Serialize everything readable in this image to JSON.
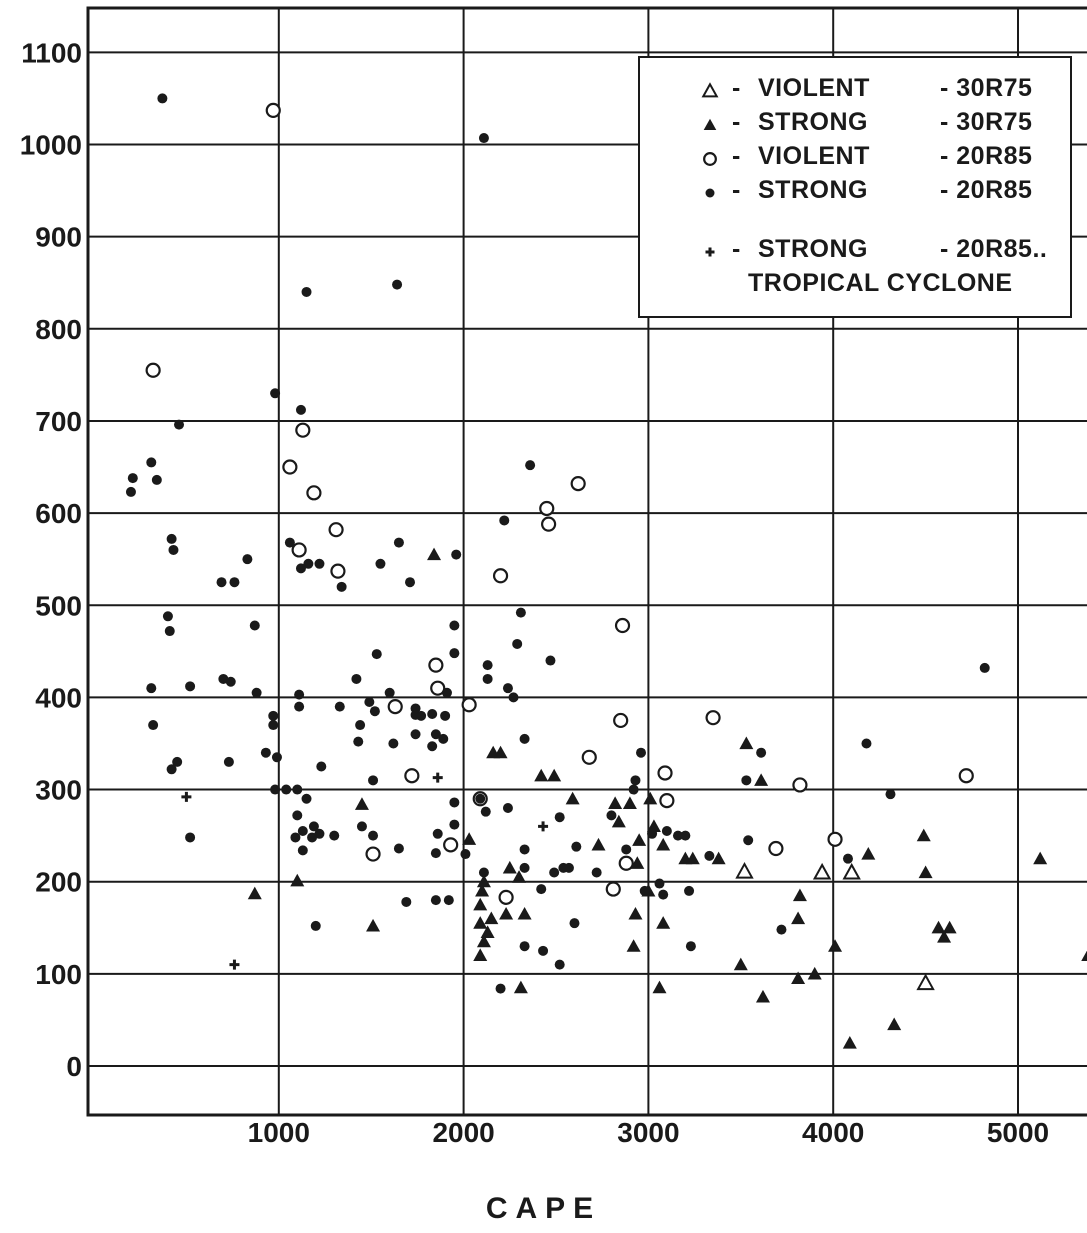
{
  "chart_data": {
    "type": "scatter",
    "xlabel": "CAPE",
    "ylabel": "",
    "xlim": [
      0,
      5500
    ],
    "ylim": [
      -50,
      1150
    ],
    "x_ticks": [
      1000,
      2000,
      3000,
      4000,
      5000
    ],
    "x_tick_labels": [
      "1000",
      "2000",
      "3000",
      "4000",
      "5000"
    ],
    "y_ticks": [
      0,
      100,
      200,
      300,
      400,
      500,
      600,
      700,
      800,
      900,
      1000,
      1100
    ],
    "y_tick_labels": [
      "0",
      "100",
      "200",
      "300",
      "400",
      "500",
      "600",
      "700",
      "800",
      "900",
      "1000",
      "1100"
    ],
    "grid": true,
    "legend_position": "top-right",
    "series": [
      {
        "key": "violent_30r75",
        "marker": "open-triangle",
        "legend": {
          "symbol": "△",
          "label": "VIOLENT",
          "code": "30R75"
        },
        "points": [
          [
            3520,
            211
          ],
          [
            3940,
            210
          ],
          [
            4100,
            210
          ],
          [
            4500,
            90
          ]
        ]
      },
      {
        "key": "strong_30r75",
        "marker": "filled-triangle",
        "legend": {
          "symbol": "▲",
          "label": "STRONG",
          "code": "30R75"
        },
        "points": [
          [
            870,
            187
          ],
          [
            1100,
            201
          ],
          [
            1450,
            284
          ],
          [
            1510,
            152
          ],
          [
            1840,
            555
          ],
          [
            2030,
            246
          ],
          [
            2090,
            120
          ],
          [
            2090,
            175
          ],
          [
            2090,
            155
          ],
          [
            2100,
            190
          ],
          [
            2110,
            200
          ],
          [
            2110,
            135
          ],
          [
            2130,
            145
          ],
          [
            2150,
            160
          ],
          [
            2160,
            340
          ],
          [
            2200,
            340
          ],
          [
            2230,
            165
          ],
          [
            2250,
            215
          ],
          [
            2300,
            205
          ],
          [
            2310,
            85
          ],
          [
            2330,
            165
          ],
          [
            2420,
            315
          ],
          [
            2490,
            315
          ],
          [
            2590,
            290
          ],
          [
            2730,
            240
          ],
          [
            2820,
            285
          ],
          [
            2840,
            265
          ],
          [
            2900,
            285
          ],
          [
            2920,
            130
          ],
          [
            2930,
            165
          ],
          [
            2940,
            220
          ],
          [
            2950,
            245
          ],
          [
            3000,
            190
          ],
          [
            3010,
            290
          ],
          [
            3030,
            260
          ],
          [
            3060,
            85
          ],
          [
            3080,
            155
          ],
          [
            3080,
            240
          ],
          [
            3200,
            225
          ],
          [
            3240,
            225
          ],
          [
            3380,
            225
          ],
          [
            3500,
            110
          ],
          [
            3530,
            350
          ],
          [
            3610,
            310
          ],
          [
            3620,
            75
          ],
          [
            3810,
            160
          ],
          [
            3810,
            95
          ],
          [
            3820,
            185
          ],
          [
            3900,
            100
          ],
          [
            4010,
            130
          ],
          [
            4090,
            25
          ],
          [
            4190,
            230
          ],
          [
            4330,
            45
          ],
          [
            4490,
            250
          ],
          [
            4500,
            210
          ],
          [
            4570,
            150
          ],
          [
            4600,
            140
          ],
          [
            4630,
            150
          ],
          [
            5120,
            225
          ],
          [
            5380,
            120
          ]
        ]
      },
      {
        "key": "violent_20r85",
        "marker": "open-circle",
        "legend": {
          "symbol": "○",
          "label": "VIOLENT",
          "code": "20R85"
        },
        "points": [
          [
            320,
            755
          ],
          [
            970,
            1037
          ],
          [
            1060,
            650
          ],
          [
            1110,
            560
          ],
          [
            1130,
            690
          ],
          [
            1190,
            622
          ],
          [
            1310,
            582
          ],
          [
            1320,
            537
          ],
          [
            1510,
            230
          ],
          [
            1630,
            390
          ],
          [
            1720,
            315
          ],
          [
            1850,
            435
          ],
          [
            1860,
            410
          ],
          [
            1930,
            240
          ],
          [
            2030,
            392
          ],
          [
            2090,
            290
          ],
          [
            2200,
            532
          ],
          [
            2230,
            183
          ],
          [
            2450,
            605
          ],
          [
            2460,
            588
          ],
          [
            2620,
            632
          ],
          [
            2680,
            335
          ],
          [
            2810,
            192
          ],
          [
            2850,
            375
          ],
          [
            2860,
            478
          ],
          [
            2880,
            220
          ],
          [
            3090,
            318
          ],
          [
            3100,
            288
          ],
          [
            3350,
            378
          ],
          [
            3690,
            236
          ],
          [
            3820,
            305
          ],
          [
            4010,
            246
          ],
          [
            4720,
            315
          ]
        ]
      },
      {
        "key": "strong_20r85",
        "marker": "filled-circle",
        "legend": {
          "symbol": "●",
          "label": "STRONG",
          "code": "20R85"
        },
        "points": [
          [
            370,
            1050
          ],
          [
            2110,
            1007
          ],
          [
            980,
            730
          ],
          [
            1120,
            712
          ],
          [
            1150,
            840
          ],
          [
            1640,
            848
          ],
          [
            200,
            623
          ],
          [
            210,
            638
          ],
          [
            310,
            655
          ],
          [
            340,
            636
          ],
          [
            420,
            572
          ],
          [
            430,
            560
          ],
          [
            460,
            696
          ],
          [
            400,
            488
          ],
          [
            410,
            472
          ],
          [
            310,
            410
          ],
          [
            320,
            370
          ],
          [
            420,
            322
          ],
          [
            450,
            330
          ],
          [
            520,
            412
          ],
          [
            520,
            248
          ],
          [
            690,
            525
          ],
          [
            760,
            525
          ],
          [
            700,
            420
          ],
          [
            740,
            417
          ],
          [
            730,
            330
          ],
          [
            830,
            550
          ],
          [
            870,
            478
          ],
          [
            880,
            405
          ],
          [
            930,
            340
          ],
          [
            970,
            380
          ],
          [
            970,
            370
          ],
          [
            980,
            300
          ],
          [
            990,
            335
          ],
          [
            1040,
            300
          ],
          [
            1060,
            568
          ],
          [
            1090,
            248
          ],
          [
            1100,
            300
          ],
          [
            1100,
            272
          ],
          [
            1110,
            403
          ],
          [
            1110,
            390
          ],
          [
            1120,
            540
          ],
          [
            1130,
            234
          ],
          [
            1130,
            255
          ],
          [
            1150,
            290
          ],
          [
            1160,
            545
          ],
          [
            1180,
            248
          ],
          [
            1190,
            260
          ],
          [
            1200,
            152
          ],
          [
            1220,
            545
          ],
          [
            1220,
            252
          ],
          [
            1230,
            325
          ],
          [
            1300,
            250
          ],
          [
            1330,
            390
          ],
          [
            1340,
            520
          ],
          [
            1420,
            420
          ],
          [
            1430,
            352
          ],
          [
            1440,
            370
          ],
          [
            1450,
            260
          ],
          [
            1490,
            395
          ],
          [
            1510,
            310
          ],
          [
            1510,
            250
          ],
          [
            1520,
            385
          ],
          [
            1530,
            447
          ],
          [
            1550,
            545
          ],
          [
            1600,
            405
          ],
          [
            1620,
            350
          ],
          [
            1650,
            568
          ],
          [
            1650,
            236
          ],
          [
            1690,
            178
          ],
          [
            1710,
            525
          ],
          [
            1740,
            388
          ],
          [
            1740,
            360
          ],
          [
            1740,
            381
          ],
          [
            1770,
            380
          ],
          [
            1830,
            382
          ],
          [
            1830,
            347
          ],
          [
            1850,
            360
          ],
          [
            1850,
            231
          ],
          [
            1850,
            180
          ],
          [
            1860,
            252
          ],
          [
            1890,
            355
          ],
          [
            1900,
            380
          ],
          [
            1910,
            405
          ],
          [
            1920,
            180
          ],
          [
            1950,
            448
          ],
          [
            1950,
            478
          ],
          [
            1950,
            286
          ],
          [
            1950,
            262
          ],
          [
            1960,
            555
          ],
          [
            2010,
            230
          ],
          [
            2090,
            290
          ],
          [
            2110,
            210
          ],
          [
            2120,
            276
          ],
          [
            2130,
            420
          ],
          [
            2130,
            435
          ],
          [
            2200,
            84
          ],
          [
            2220,
            592
          ],
          [
            2240,
            410
          ],
          [
            2240,
            280
          ],
          [
            2270,
            400
          ],
          [
            2290,
            458
          ],
          [
            2310,
            492
          ],
          [
            2330,
            355
          ],
          [
            2330,
            235
          ],
          [
            2330,
            215
          ],
          [
            2330,
            130
          ],
          [
            2360,
            652
          ],
          [
            2420,
            192
          ],
          [
            2430,
            125
          ],
          [
            2470,
            440
          ],
          [
            2490,
            210
          ],
          [
            2520,
            110
          ],
          [
            2520,
            270
          ],
          [
            2540,
            215
          ],
          [
            2570,
            215
          ],
          [
            2600,
            155
          ],
          [
            2610,
            238
          ],
          [
            2720,
            210
          ],
          [
            2800,
            272
          ],
          [
            2880,
            235
          ],
          [
            2920,
            300
          ],
          [
            2930,
            310
          ],
          [
            2960,
            340
          ],
          [
            2980,
            190
          ],
          [
            3020,
            252
          ],
          [
            3060,
            198
          ],
          [
            3080,
            186
          ],
          [
            3100,
            255
          ],
          [
            3160,
            250
          ],
          [
            3200,
            250
          ],
          [
            3220,
            190
          ],
          [
            3230,
            130
          ],
          [
            3330,
            228
          ],
          [
            3530,
            310
          ],
          [
            3540,
            245
          ],
          [
            3610,
            340
          ],
          [
            3720,
            148
          ],
          [
            4080,
            225
          ],
          [
            4180,
            350
          ],
          [
            4310,
            295
          ],
          [
            4820,
            432
          ]
        ]
      },
      {
        "key": "strong_20r85_tc",
        "marker": "plus",
        "legend": {
          "symbol": "✦",
          "label": "STRONG",
          "code": "20R85..",
          "line2": "TROPICAL CYCLONE"
        },
        "points": [
          [
            500,
            292
          ],
          [
            760,
            110
          ],
          [
            1860,
            313
          ],
          [
            2430,
            260
          ]
        ]
      }
    ]
  }
}
